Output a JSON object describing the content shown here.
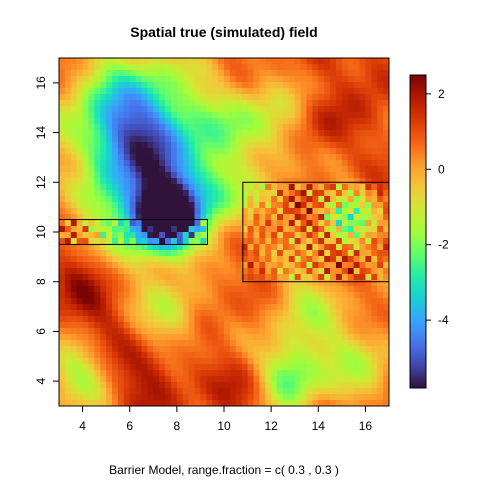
{
  "chart_data": {
    "type": "heatmap",
    "title": "Spatial true (simulated) field",
    "subtitle": "Barrier Model, range.fraction = c( 0.3 ,  0.3 )",
    "xlim": [
      3,
      17
    ],
    "ylim": [
      3,
      17
    ],
    "x_ticks": [
      4,
      6,
      8,
      10,
      12,
      14,
      16
    ],
    "y_ticks": [
      4,
      6,
      8,
      10,
      12,
      14,
      16
    ],
    "colorbar": {
      "range": [
        -5.8,
        2.5
      ],
      "ticks": [
        2,
        0,
        -2,
        -4
      ],
      "palette": [
        "#30123b",
        "#4145ab",
        "#4675ed",
        "#39a2fc",
        "#1bcfd4",
        "#24eca6",
        "#61fc6c",
        "#a4fc3b",
        "#d1e834",
        "#f3c63a",
        "#fe9b2d",
        "#f36315",
        "#d93806",
        "#b11901",
        "#7a0402"
      ]
    },
    "barriers": [
      {
        "x": [
          3,
          9.3
        ],
        "y": [
          9.5,
          10.5
        ]
      },
      {
        "x": [
          10.8,
          17
        ],
        "y": [
          8,
          12
        ]
      }
    ],
    "field_features": [
      {
        "x": 7.5,
        "y": 10.6,
        "value": -5.5,
        "spread": 1.0
      },
      {
        "x": 6.8,
        "y": 12.5,
        "value": -3.5,
        "spread": 2.2
      },
      {
        "x": 6.0,
        "y": 14.8,
        "value": -2.2,
        "spread": 1.8
      },
      {
        "x": 11.5,
        "y": 14.0,
        "value": -1.6,
        "spread": 1.4
      },
      {
        "x": 15.3,
        "y": 10.6,
        "value": -1.8,
        "spread": 0.8
      },
      {
        "x": 12.8,
        "y": 4.2,
        "value": -2.4,
        "spread": 1.0
      },
      {
        "x": 3.7,
        "y": 4.2,
        "value": -1.4,
        "spread": 1.0
      },
      {
        "x": 15.8,
        "y": 4.8,
        "value": -1.0,
        "spread": 1.2
      },
      {
        "x": 7.8,
        "y": 6.8,
        "value": -1.2,
        "spread": 1.0
      },
      {
        "x": 13.5,
        "y": 7.0,
        "value": -0.9,
        "spread": 1.2
      },
      {
        "x": 10.0,
        "y": 11.5,
        "value": -0.7,
        "spread": 1.0
      },
      {
        "x": 3.8,
        "y": 12.5,
        "value": 2.0,
        "spread": 0.7
      },
      {
        "x": 3.8,
        "y": 7.8,
        "value": 2.0,
        "spread": 1.0
      },
      {
        "x": 7.0,
        "y": 4.0,
        "value": 2.0,
        "spread": 1.0
      },
      {
        "x": 11.0,
        "y": 12.8,
        "value": 2.2,
        "spread": 0.9
      },
      {
        "x": 14.0,
        "y": 14.2,
        "value": 2.0,
        "spread": 0.9
      },
      {
        "x": 16.5,
        "y": 16.3,
        "value": 1.8,
        "spread": 0.8
      },
      {
        "x": 11.0,
        "y": 3.7,
        "value": 1.8,
        "spread": 0.9
      },
      {
        "x": 9.0,
        "y": 8.0,
        "value": 1.4,
        "spread": 1.0
      },
      {
        "x": 5.0,
        "y": 6.0,
        "value": 1.4,
        "spread": 1.0
      }
    ]
  }
}
